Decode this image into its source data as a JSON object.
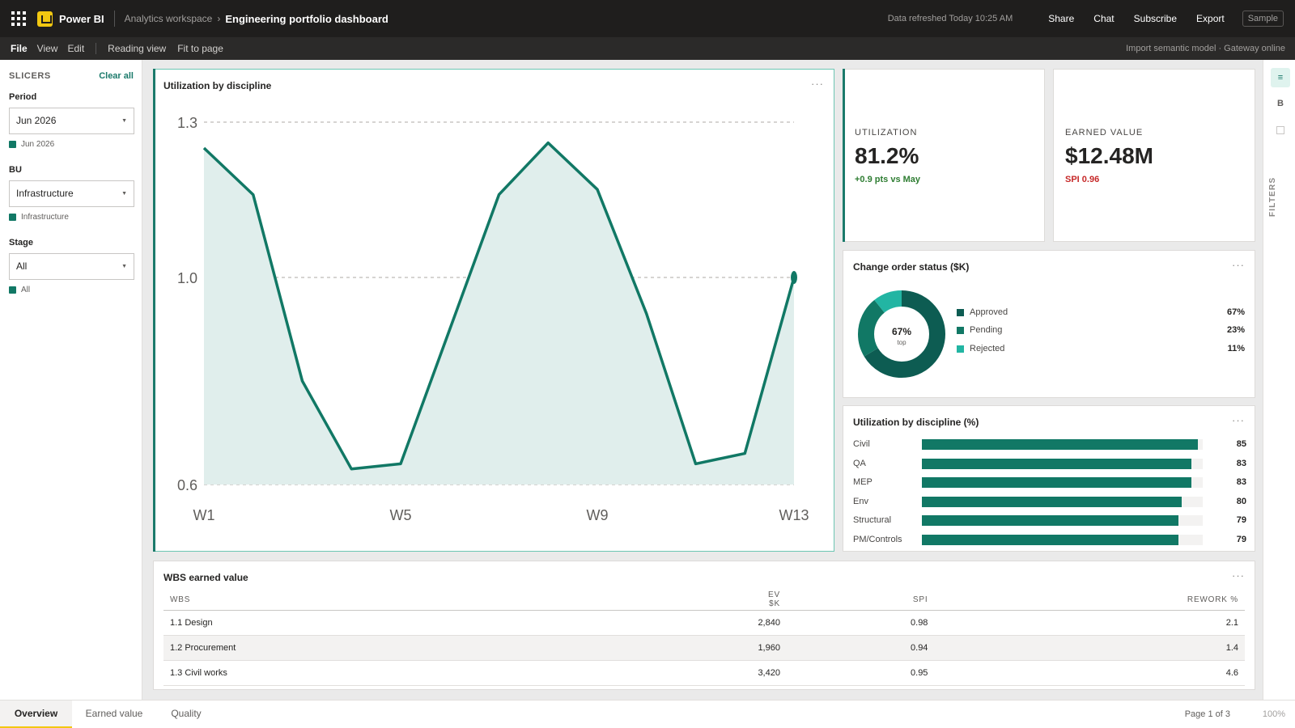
{
  "app": {
    "name": "Power BI",
    "workspace": "Analytics workspace",
    "breadcrumb_sep": "›",
    "report_title": "Engineering portfolio dashboard",
    "refresh_text": "Data refreshed Today 10:25 AM",
    "actions": [
      "Share",
      "Chat",
      "Subscribe",
      "Export"
    ],
    "sample_label": "Sample",
    "accent": "#117865",
    "brand": "#f2c811"
  },
  "menu": {
    "items": [
      "File",
      "View",
      "Edit"
    ],
    "view_modes": [
      "Reading view",
      "Fit to page"
    ],
    "status": "Import semantic model · Gateway online"
  },
  "slicers": {
    "title": "SLICERS",
    "clear_all": "Clear all",
    "items": [
      {
        "label": "Period",
        "value": "Jun 2026",
        "chip": "Jun 2026"
      },
      {
        "label": "BU",
        "value": "Infrastructure",
        "chip": "Infrastructure"
      },
      {
        "label": "Stage",
        "value": "All",
        "chip": "All"
      }
    ]
  },
  "main_chart": {
    "title": "Utilization by discipline",
    "more": "···",
    "chart_data": {
      "type": "area",
      "title": "Utilization by discipline",
      "xlabel": "",
      "ylabel": "",
      "x": [
        "W1",
        "W2",
        "W3",
        "W4",
        "W5",
        "W6",
        "W7",
        "W8",
        "W9",
        "W10",
        "W11",
        "W12",
        "W13"
      ],
      "x_tick_labels": [
        "W1",
        "W5",
        "W9",
        "W13"
      ],
      "y_tick_labels": [
        "1.3",
        "1.0",
        "0.6"
      ],
      "y_ticks": [
        1.3,
        1.0,
        0.6
      ],
      "ylim": [
        0.6,
        1.3
      ],
      "series": [
        {
          "values": [
            1.25,
            1.16,
            0.8,
            0.63,
            0.64,
            0.9,
            1.16,
            1.26,
            1.17,
            0.93,
            0.64,
            0.66,
            1.0
          ]
        }
      ],
      "grid": "horizontal dashed",
      "color": "#117865",
      "fill": "#e0eeec"
    }
  },
  "kpis": {
    "utilization": {
      "label": "UTILIZATION",
      "value": "81.2%",
      "delta": "+0.9 pts vs May",
      "delta_color": "#2e7d32"
    },
    "earned_value": {
      "label": "EARNED VALUE",
      "value": "$12.48M",
      "delta": "SPI 0.96",
      "delta_color": "#c62828"
    }
  },
  "change_orders": {
    "title": "Change order status ($K)",
    "more": "···",
    "center_value": "67%",
    "center_label": "top",
    "chart_data": {
      "type": "pie",
      "title": "Change order status ($K)",
      "categories": [
        "Approved",
        "Pending",
        "Rejected"
      ],
      "values": [
        67,
        23,
        11
      ],
      "labels": [
        "67%",
        "23%",
        "11%"
      ],
      "colors": [
        "#0d5c52",
        "#117865",
        "#22b5a3"
      ]
    }
  },
  "discipline_bars": {
    "title": "Utilization by discipline (%)",
    "more": "···",
    "chart_data": {
      "type": "bar",
      "title": "Utilization by discipline (%)",
      "categories": [
        "Civil",
        "QA",
        "MEP",
        "Env",
        "Structural",
        "PM/Controls"
      ],
      "values": [
        85,
        83,
        83,
        80,
        79,
        79
      ],
      "xlim": [
        0,
        86.4
      ],
      "color": "#117865"
    }
  },
  "wbs": {
    "title": "WBS earned value",
    "more": "···",
    "columns": [
      "WBS",
      "EV $K",
      "SPI",
      "REWORK %"
    ],
    "rows": [
      [
        "1.1 Design",
        "2,840",
        "0.98",
        "2.1"
      ],
      [
        "1.2 Procurement",
        "1,960",
        "0.94",
        "1.4"
      ],
      [
        "1.3 Civil works",
        "3,420",
        "0.95",
        "4.6"
      ]
    ]
  },
  "rail": {
    "buttons": [
      "≡",
      "B"
    ],
    "filters_label": "FILTERS"
  },
  "footer": {
    "tabs": [
      "Overview",
      "Earned value",
      "Quality"
    ],
    "pager": "Page 1 of 3",
    "zoom": "100%"
  }
}
